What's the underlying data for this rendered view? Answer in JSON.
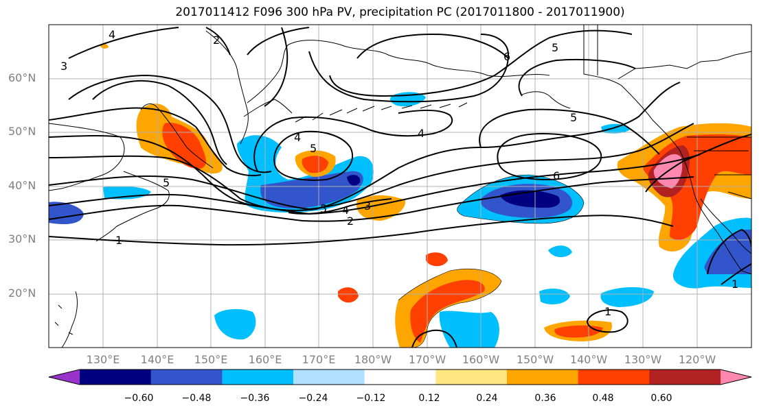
{
  "title": "2017011412 F096 300 hPa PV, precipitation PC (2017011800 - 2017011900)",
  "latitude_labels": [
    "60°N",
    "50°N",
    "40°N",
    "30°N",
    "20°N"
  ],
  "longitude_labels": [
    "130°E",
    "140°E",
    "150°E",
    "160°E",
    "170°E",
    "180°W",
    "170°W",
    "160°W",
    "150°W",
    "140°W",
    "130°W",
    "120°W"
  ],
  "contour_labels": [
    "4",
    "2",
    "3",
    "6",
    "5",
    "5",
    "4",
    "4",
    "5",
    "6",
    "5",
    "5",
    "4",
    "3",
    "2",
    "1",
    "1",
    "1"
  ],
  "colorbar": {
    "ticks": [
      "−0.60",
      "−0.48",
      "−0.36",
      "−0.24",
      "−0.12",
      "0.12",
      "0.24",
      "0.36",
      "0.48",
      "0.60"
    ],
    "colors": [
      "#9933cc",
      "#000080",
      "#3355cc",
      "#00bfff",
      "#b0e0ff",
      "#ffffff",
      "#ffe680",
      "#ffa500",
      "#ff4000",
      "#b22222",
      "#ff88b0"
    ]
  },
  "colors": {
    "land_line": "#000000",
    "grid": "#b0b0b0",
    "label_gray": "#808080"
  }
}
